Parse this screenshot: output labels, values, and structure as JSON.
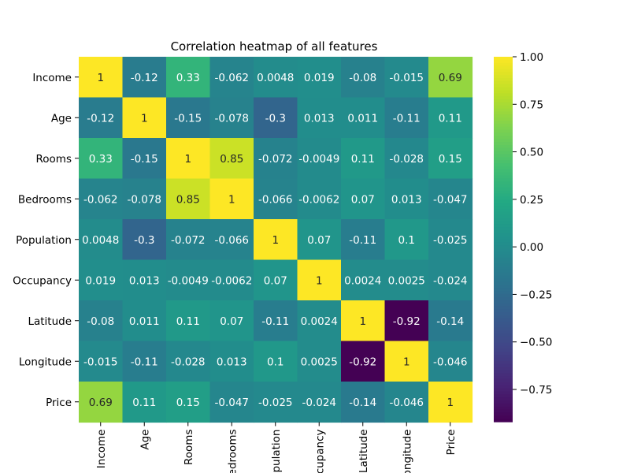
{
  "chart_data": {
    "type": "heatmap",
    "title": "Correlation heatmap of all features",
    "xlabel": "",
    "ylabel": "",
    "row_labels": [
      "Income",
      "Age",
      "Rooms",
      "Bedrooms",
      "Population",
      "Occupancy",
      "Latitude",
      "Longitude",
      "Price"
    ],
    "col_labels": [
      "Income",
      "Age",
      "Rooms",
      "Bedrooms",
      "Population",
      "Occupancy",
      "Latitude",
      "Longitude",
      "Price"
    ],
    "values": [
      [
        1,
        -0.12,
        0.33,
        -0.062,
        0.0048,
        0.019,
        -0.08,
        -0.015,
        0.69
      ],
      [
        -0.12,
        1,
        -0.15,
        -0.078,
        -0.3,
        0.013,
        0.011,
        -0.11,
        0.11
      ],
      [
        0.33,
        -0.15,
        1,
        0.85,
        -0.072,
        -0.0049,
        0.11,
        -0.028,
        0.15
      ],
      [
        -0.062,
        -0.078,
        0.85,
        1,
        -0.066,
        -0.0062,
        0.07,
        0.013,
        -0.047
      ],
      [
        0.0048,
        -0.3,
        -0.072,
        -0.066,
        1,
        0.07,
        -0.11,
        0.1,
        -0.025
      ],
      [
        0.019,
        0.013,
        -0.0049,
        -0.0062,
        0.07,
        1,
        0.0024,
        0.0025,
        -0.024
      ],
      [
        -0.08,
        0.011,
        0.11,
        0.07,
        -0.11,
        0.0024,
        1,
        -0.92,
        -0.14
      ],
      [
        -0.015,
        -0.11,
        -0.028,
        0.013,
        0.1,
        0.0025,
        -0.92,
        1,
        -0.046
      ],
      [
        0.69,
        0.11,
        0.15,
        -0.047,
        -0.025,
        -0.024,
        -0.14,
        -0.046,
        1
      ]
    ],
    "value_labels": [
      [
        "1",
        "-0.12",
        "0.33",
        "-0.062",
        "0.0048",
        "0.019",
        "-0.08",
        "-0.015",
        "0.69"
      ],
      [
        "-0.12",
        "1",
        "-0.15",
        "-0.078",
        "-0.3",
        "0.013",
        "0.011",
        "-0.11",
        "0.11"
      ],
      [
        "0.33",
        "-0.15",
        "1",
        "0.85",
        "-0.072",
        "-0.0049",
        "0.11",
        "-0.028",
        "0.15"
      ],
      [
        "-0.062",
        "-0.078",
        "0.85",
        "1",
        "-0.066",
        "-0.0062",
        "0.07",
        "0.013",
        "-0.047"
      ],
      [
        "0.0048",
        "-0.3",
        "-0.072",
        "-0.066",
        "1",
        "0.07",
        "-0.11",
        "0.1",
        "-0.025"
      ],
      [
        "0.019",
        "0.013",
        "-0.0049",
        "-0.0062",
        "0.07",
        "1",
        "0.0024",
        "0.0025",
        "-0.024"
      ],
      [
        "-0.08",
        "0.011",
        "0.11",
        "0.07",
        "-0.11",
        "0.0024",
        "1",
        "-0.92",
        "-0.14"
      ],
      [
        "-0.015",
        "-0.11",
        "-0.028",
        "0.013",
        "0.1",
        "0.0025",
        "-0.92",
        "1",
        "-0.046"
      ],
      [
        "0.69",
        "0.11",
        "0.15",
        "-0.047",
        "-0.025",
        "-0.024",
        "-0.14",
        "-0.046",
        "1"
      ]
    ],
    "colormap": "viridis",
    "vmin": -0.92,
    "vmax": 1,
    "colorbar_ticks": [
      1.0,
      0.75,
      0.5,
      0.25,
      0.0,
      -0.25,
      -0.5,
      -0.75
    ],
    "colorbar_tick_labels": [
      "1.00",
      "0.75",
      "0.50",
      "0.25",
      "0.00",
      "−0.25",
      "−0.50",
      "−0.75"
    ],
    "colorbar_placement": "right",
    "grid": false
  }
}
